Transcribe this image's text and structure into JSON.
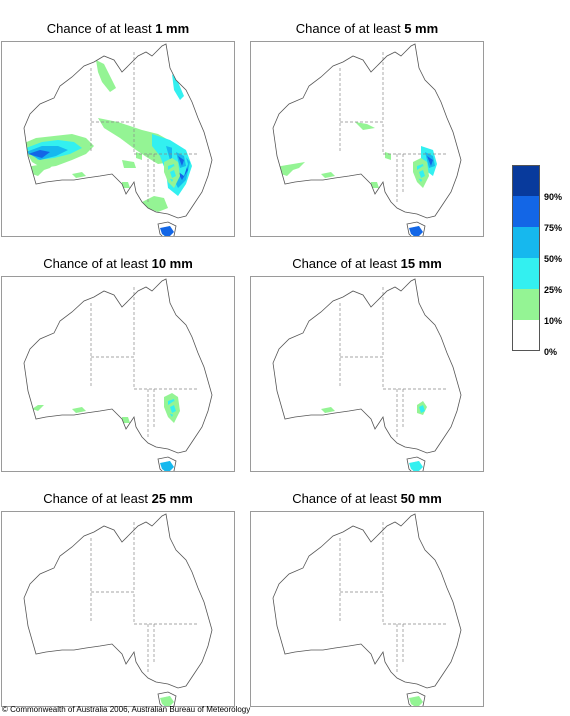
{
  "panels": [
    {
      "prefix": "Chance of at least",
      "amount": "1 mm",
      "level": 6
    },
    {
      "prefix": "Chance of at least",
      "amount": "5 mm",
      "level": 5
    },
    {
      "prefix": "Chance of at least",
      "amount": "10 mm",
      "level": 4
    },
    {
      "prefix": "Chance of at least",
      "amount": "15 mm",
      "level": 3
    },
    {
      "prefix": "Chance of at least",
      "amount": "25 mm",
      "level": 2
    },
    {
      "prefix": "Chance of at least",
      "amount": "50 mm",
      "level": 1
    }
  ],
  "legend": {
    "labels": [
      "90%",
      "75%",
      "50%",
      "25%",
      "10%",
      "0%"
    ],
    "colors": [
      "#083a9c",
      "#1366e6",
      "#16b8ee",
      "#33f0f0",
      "#94f494",
      "#ffffff"
    ]
  },
  "copyright": "© Commonwealth of Australia 2006, Australian Bureau of Meteorology"
}
